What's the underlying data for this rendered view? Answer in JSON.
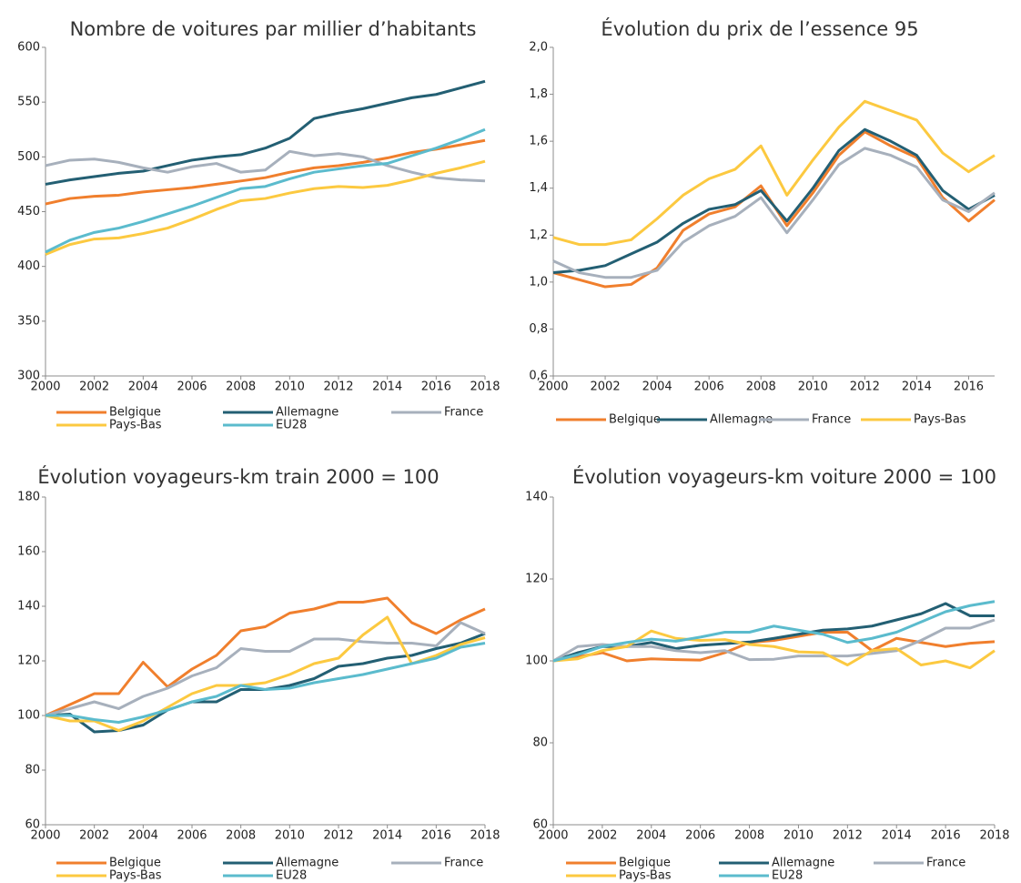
{
  "chart_data": [
    {
      "type": "line",
      "title": "Nombre de voitures par millier d’habitants",
      "x": [
        2000,
        2001,
        2002,
        2003,
        2004,
        2005,
        2006,
        2007,
        2008,
        2009,
        2010,
        2011,
        2012,
        2013,
        2014,
        2015,
        2016,
        2017,
        2018
      ],
      "xlim": [
        2000,
        2018
      ],
      "xticks": [
        2000,
        2002,
        2004,
        2006,
        2008,
        2010,
        2012,
        2014,
        2016,
        2018
      ],
      "ylim": [
        300,
        600
      ],
      "yticks": [
        300,
        350,
        400,
        450,
        500,
        550,
        600
      ],
      "series": [
        {
          "name": "Belgique",
          "color": "#f07f2d",
          "values": [
            457,
            462,
            464,
            465,
            468,
            470,
            472,
            475,
            478,
            481,
            486,
            490,
            492,
            495,
            499,
            504,
            507,
            511,
            515
          ]
        },
        {
          "name": "Allemagne",
          "color": "#235f73",
          "values": [
            475,
            479,
            482,
            485,
            487,
            492,
            497,
            500,
            502,
            508,
            517,
            535,
            540,
            544,
            549,
            554,
            557,
            563,
            569
          ]
        },
        {
          "name": "France",
          "color": "#a7b0bc",
          "values": [
            492,
            497,
            498,
            495,
            490,
            486,
            491,
            494,
            486,
            488,
            505,
            501,
            503,
            500,
            492,
            486,
            481,
            479,
            478
          ]
        },
        {
          "name": "Pays-Bas",
          "color": "#fcc940",
          "values": [
            411,
            420,
            425,
            426,
            430,
            435,
            443,
            452,
            460,
            462,
            467,
            471,
            473,
            472,
            474,
            479,
            485,
            490,
            496
          ]
        },
        {
          "name": "EU28",
          "color": "#5bbbcd",
          "values": [
            413,
            424,
            431,
            435,
            441,
            448,
            455,
            463,
            471,
            473,
            480,
            486,
            489,
            492,
            494,
            501,
            508,
            516,
            525
          ]
        }
      ]
    },
    {
      "type": "line",
      "title": "Évolution du prix de l’essence 95",
      "x": [
        2000,
        2001,
        2002,
        2003,
        2004,
        2005,
        2006,
        2007,
        2008,
        2009,
        2010,
        2011,
        2012,
        2013,
        2014,
        2015,
        2016,
        2017
      ],
      "xlim": [
        2000,
        2017
      ],
      "xticks": [
        2000,
        2002,
        2004,
        2006,
        2008,
        2010,
        2012,
        2014,
        2016
      ],
      "ylim": [
        0.6,
        2.0
      ],
      "yticks": [
        {
          "value": 0.6,
          "label": "0,6"
        },
        {
          "value": 0.8,
          "label": "0,8"
        },
        {
          "value": 1.0,
          "label": "1,0"
        },
        {
          "value": 1.2,
          "label": "1,2"
        },
        {
          "value": 1.4,
          "label": "1,4"
        },
        {
          "value": 1.6,
          "label": "1,6"
        },
        {
          "value": 1.8,
          "label": "1,8"
        },
        {
          "value": 2.0,
          "label": "2,0"
        }
      ],
      "series": [
        {
          "name": "Belgique",
          "color": "#f07f2d",
          "values": [
            1.04,
            1.01,
            0.98,
            0.99,
            1.06,
            1.22,
            1.29,
            1.32,
            1.41,
            1.24,
            1.38,
            1.54,
            1.64,
            1.58,
            1.53,
            1.36,
            1.26,
            1.35
          ]
        },
        {
          "name": "Allemagne",
          "color": "#235f73",
          "values": [
            1.04,
            1.05,
            1.07,
            1.12,
            1.17,
            1.25,
            1.31,
            1.33,
            1.39,
            1.26,
            1.4,
            1.56,
            1.65,
            1.6,
            1.54,
            1.39,
            1.31,
            1.37
          ]
        },
        {
          "name": "France",
          "color": "#a7b0bc",
          "values": [
            1.09,
            1.04,
            1.02,
            1.02,
            1.05,
            1.17,
            1.24,
            1.28,
            1.36,
            1.21,
            1.35,
            1.5,
            1.57,
            1.54,
            1.49,
            1.35,
            1.3,
            1.38
          ]
        },
        {
          "name": "Pays-Bas",
          "color": "#fcc940",
          "values": [
            1.19,
            1.16,
            1.16,
            1.18,
            1.27,
            1.37,
            1.44,
            1.48,
            1.58,
            1.37,
            1.52,
            1.66,
            1.77,
            1.73,
            1.69,
            1.55,
            1.47,
            1.54
          ]
        }
      ]
    },
    {
      "type": "line",
      "title": "Évolution voyageurs-km train 2000 = 100",
      "x": [
        2000,
        2001,
        2002,
        2003,
        2004,
        2005,
        2006,
        2007,
        2008,
        2009,
        2010,
        2011,
        2012,
        2013,
        2014,
        2015,
        2016,
        2017,
        2018
      ],
      "xlim": [
        2000,
        2018
      ],
      "xticks": [
        2000,
        2002,
        2004,
        2006,
        2008,
        2010,
        2012,
        2014,
        2016,
        2018
      ],
      "ylim": [
        60,
        180
      ],
      "yticks": [
        60,
        80,
        100,
        120,
        140,
        160,
        180
      ],
      "series": [
        {
          "name": "Belgique",
          "color": "#f07f2d",
          "values": [
            100,
            104,
            108,
            108,
            119.5,
            110.5,
            117,
            122,
            131,
            132.5,
            137.5,
            139,
            141.5,
            141.5,
            143,
            134,
            130,
            135,
            139
          ]
        },
        {
          "name": "Allemagne",
          "color": "#235f73",
          "values": [
            100,
            100.5,
            94,
            94.5,
            96.5,
            102,
            105,
            105,
            109.5,
            109.5,
            111,
            113.5,
            118,
            119,
            121,
            122,
            124.5,
            126.5,
            130
          ]
        },
        {
          "name": "France",
          "color": "#a7b0bc",
          "values": [
            100,
            102.5,
            105,
            102.5,
            107,
            110,
            114.5,
            117.5,
            124.5,
            123.5,
            123.5,
            128,
            128,
            127,
            126.5,
            126.5,
            125.5,
            134,
            130
          ]
        },
        {
          "name": "Pays-Bas",
          "color": "#fcc940",
          "values": [
            100,
            98,
            98,
            94.5,
            98,
            103,
            108,
            111,
            111,
            112,
            115,
            119,
            121,
            129.5,
            136,
            119,
            122,
            126,
            128.5
          ]
        },
        {
          "name": "EU28",
          "color": "#5bbbcd",
          "values": [
            100,
            100,
            98.5,
            97.5,
            99.5,
            102,
            105,
            107,
            111,
            109.5,
            110,
            112,
            113.5,
            115,
            117,
            119,
            121,
            125,
            126.5
          ]
        }
      ]
    },
    {
      "type": "line",
      "title": "Évolution voyageurs-km voiture 2000 = 100",
      "x": [
        2000,
        2001,
        2002,
        2003,
        2004,
        2005,
        2006,
        2007,
        2008,
        2009,
        2010,
        2011,
        2012,
        2013,
        2014,
        2015,
        2016,
        2017,
        2018
      ],
      "xlim": [
        2000,
        2018
      ],
      "xticks": [
        2000,
        2002,
        2004,
        2006,
        2008,
        2010,
        2012,
        2014,
        2016,
        2018
      ],
      "ylim": [
        60,
        140
      ],
      "yticks": [
        60,
        80,
        100,
        120,
        140
      ],
      "series": [
        {
          "name": "Belgique",
          "color": "#f07f2d",
          "values": [
            100,
            101,
            102,
            100,
            100.5,
            100.3,
            100.2,
            102,
            104.5,
            105,
            106,
            107,
            107,
            102.5,
            105.5,
            104.5,
            103.5,
            104.3,
            104.7
          ]
        },
        {
          "name": "Allemagne",
          "color": "#235f73",
          "values": [
            100,
            102,
            103.5,
            103.5,
            104.5,
            103,
            103.8,
            104.2,
            104.6,
            105.5,
            106.5,
            107.5,
            107.8,
            108.5,
            110,
            111.5,
            114,
            111,
            111
          ]
        },
        {
          "name": "France",
          "color": "#a7b0bc",
          "values": [
            100,
            103.5,
            104,
            103.5,
            103.5,
            102.5,
            102,
            102.5,
            100.3,
            100.4,
            101.2,
            101.2,
            101.2,
            101.8,
            102.5,
            105,
            108,
            108,
            110
          ]
        },
        {
          "name": "Pays-Bas",
          "color": "#fcc940",
          "values": [
            100,
            100.5,
            102.5,
            103.5,
            107.3,
            105.5,
            105,
            105.2,
            104,
            103.5,
            102.2,
            102,
            99,
            102.5,
            103,
            99,
            100,
            98.3,
            102.5
          ]
        },
        {
          "name": "EU28",
          "color": "#5bbbcd",
          "values": [
            100,
            101.5,
            103.5,
            104.5,
            105.3,
            104.8,
            105.8,
            107,
            107,
            108.5,
            107.5,
            106.5,
            104.5,
            105.5,
            107,
            109.5,
            112,
            113.5,
            114.5
          ]
        }
      ]
    }
  ]
}
